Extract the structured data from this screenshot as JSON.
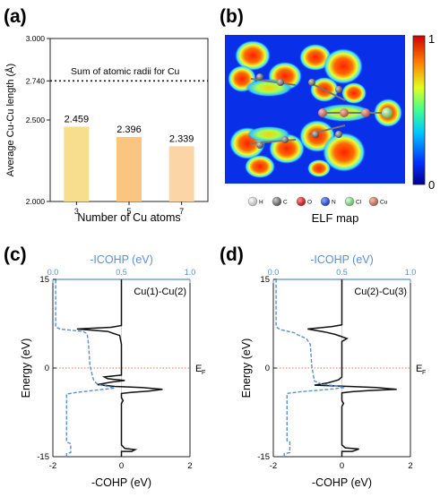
{
  "panels": {
    "a": "(a)",
    "b": "(b)",
    "c": "(c)",
    "d": "(d)"
  },
  "colors": {
    "bar_a": "#f7de8f",
    "bar_b": "#f9c580",
    "bar_c": "#fbd5a6",
    "icohp_line": "#5b8fd0",
    "cohp_line": "#111111",
    "fermi_line": "#e07a4a",
    "top_axis": "#5b8fd0"
  },
  "chart_data": [
    {
      "type": "bar",
      "panel": "a",
      "categories": [
        "3",
        "5",
        "7"
      ],
      "values": [
        2.459,
        2.396,
        2.339
      ],
      "value_labels": [
        "2.459",
        "2.396",
        "2.339"
      ],
      "xlabel": "Number of Cu atoms",
      "ylabel": "Average Cu-Cu length (Å)",
      "ylim": [
        2.0,
        3.0
      ],
      "yticks": [
        "2.000",
        "2.500",
        "2.740",
        "3.000"
      ],
      "reference_line": {
        "value": 2.74,
        "label": "Sum of atomic radii for Cu"
      }
    },
    {
      "type": "heatmap",
      "panel": "b",
      "title": "ELF map",
      "colorbar_ticks": [
        "1",
        "0"
      ],
      "legend": [
        {
          "symbol": "H",
          "color": "#ffffff"
        },
        {
          "symbol": "C",
          "color": "#777777"
        },
        {
          "symbol": "O",
          "color": "#e02020"
        },
        {
          "symbol": "N",
          "color": "#2050e0"
        },
        {
          "symbol": "Cl",
          "color": "#7ed67e"
        },
        {
          "symbol": "Cu",
          "color": "#d0806a"
        }
      ]
    },
    {
      "type": "line",
      "panel": "c",
      "annotation": "Cu(1)-Cu(2)",
      "xlabel": "-COHP (eV)",
      "top_xlabel": "-ICOHP (eV)",
      "ylabel": "Energy (eV)",
      "fermi_label": "E",
      "fermi_sub": "F",
      "xlim": [
        -2,
        2
      ],
      "ylim": [
        -15,
        15
      ],
      "top_xlim": [
        0,
        1
      ],
      "xticks": [
        "-2",
        "0",
        "2"
      ],
      "top_xticks": [
        "0.0",
        "0.5",
        "1.0"
      ],
      "yticks": [
        "-15",
        "0",
        "15"
      ],
      "series": [
        {
          "kind": "cohp",
          "points": [
            [
              0,
              -15
            ],
            [
              0,
              -14.1
            ],
            [
              0.3,
              -14.1
            ],
            [
              0.4,
              -13.8
            ],
            [
              0.1,
              -13.6
            ],
            [
              0,
              -13
            ],
            [
              0,
              -6
            ],
            [
              0.05,
              -5.5
            ],
            [
              0,
              -5
            ],
            [
              0,
              -4.3
            ],
            [
              0.3,
              -4.1
            ],
            [
              0.8,
              -3.9
            ],
            [
              1.2,
              -3.6
            ],
            [
              0.6,
              -3.3
            ],
            [
              -0.2,
              -3.1
            ],
            [
              -0.7,
              -2.8
            ],
            [
              -0.3,
              -2.4
            ],
            [
              0.1,
              -2.1
            ],
            [
              -0.4,
              -1.8
            ],
            [
              -0.5,
              -1.5
            ],
            [
              0,
              -1.2
            ],
            [
              0,
              0
            ],
            [
              0,
              4
            ],
            [
              -0.05,
              5.5
            ],
            [
              -0.4,
              6.2
            ],
            [
              -1.3,
              6.6
            ],
            [
              -0.3,
              6.9
            ],
            [
              0,
              7.2
            ],
            [
              0,
              15
            ]
          ]
        },
        {
          "kind": "icohp",
          "points": [
            [
              0.1,
              -15
            ],
            [
              0.1,
              -14.5
            ],
            [
              0.13,
              -14.3
            ],
            [
              0.13,
              -12.8
            ],
            [
              0.1,
              -12.5
            ],
            [
              0.1,
              -4.4
            ],
            [
              0.18,
              -4.1
            ],
            [
              0.33,
              -3.7
            ],
            [
              0.45,
              -3.4
            ],
            [
              0.4,
              -3.1
            ],
            [
              0.33,
              -2.8
            ],
            [
              0.3,
              -2.2
            ],
            [
              0.29,
              -1.5
            ],
            [
              0.28,
              -0.5
            ],
            [
              0.27,
              0.5
            ],
            [
              0.26,
              4
            ],
            [
              0.25,
              5.8
            ],
            [
              0.22,
              6.2
            ],
            [
              0.05,
              6.6
            ],
            [
              0.02,
              7.0
            ],
            [
              0.02,
              15
            ]
          ]
        }
      ]
    },
    {
      "type": "line",
      "panel": "d",
      "annotation": "Cu(2)-Cu(3)",
      "xlabel": "-COHP (eV)",
      "top_xlabel": "-ICOHP (eV)",
      "ylabel": "Energy (eV)",
      "fermi_label": "E",
      "fermi_sub": "F",
      "xlim": [
        -2,
        2
      ],
      "ylim": [
        -15,
        15
      ],
      "top_xlim": [
        0,
        1
      ],
      "xticks": [
        "-2",
        "0",
        "2"
      ],
      "top_xticks": [
        "0.0",
        "0.5",
        "1.0"
      ],
      "yticks": [
        "-15",
        "0",
        "15"
      ],
      "series": [
        {
          "kind": "cohp",
          "points": [
            [
              0,
              -15
            ],
            [
              0,
              -14.1
            ],
            [
              0.3,
              -14.1
            ],
            [
              0.5,
              -13.7
            ],
            [
              0.1,
              -13.5
            ],
            [
              0,
              -13
            ],
            [
              0,
              -6.5
            ],
            [
              0.05,
              -6
            ],
            [
              0,
              -5.5
            ],
            [
              0,
              -4.2
            ],
            [
              0.3,
              -4.0
            ],
            [
              0.8,
              -3.8
            ],
            [
              1.6,
              -3.6
            ],
            [
              1.0,
              -3.3
            ],
            [
              0.2,
              -3.1
            ],
            [
              -0.8,
              -2.9
            ],
            [
              -0.4,
              -2.5
            ],
            [
              -0.1,
              -2.0
            ],
            [
              0,
              -1.5
            ],
            [
              0,
              0
            ],
            [
              0,
              4.5
            ],
            [
              0.15,
              5.0
            ],
            [
              0,
              5.3
            ],
            [
              -0.2,
              5.7
            ],
            [
              -0.5,
              6.1
            ],
            [
              -1.0,
              6.6
            ],
            [
              -0.3,
              7.0
            ],
            [
              0,
              7.3
            ],
            [
              0,
              15
            ]
          ]
        },
        {
          "kind": "icohp",
          "points": [
            [
              0.08,
              -15
            ],
            [
              0.08,
              -14.5
            ],
            [
              0.12,
              -14.3
            ],
            [
              0.12,
              -12.5
            ],
            [
              0.1,
              -12.3
            ],
            [
              0.1,
              -4.3
            ],
            [
              0.2,
              -4.0
            ],
            [
              0.4,
              -3.6
            ],
            [
              0.52,
              -3.3
            ],
            [
              0.45,
              -3.0
            ],
            [
              0.35,
              -2.7
            ],
            [
              0.3,
              -2.2
            ],
            [
              0.29,
              -1.0
            ],
            [
              0.28,
              0.5
            ],
            [
              0.27,
              4.0
            ],
            [
              0.24,
              5.0
            ],
            [
              0.18,
              5.6
            ],
            [
              0.15,
              6.0
            ],
            [
              0.05,
              6.5
            ],
            [
              0.02,
              7.0
            ],
            [
              0.02,
              15
            ]
          ]
        }
      ]
    }
  ]
}
